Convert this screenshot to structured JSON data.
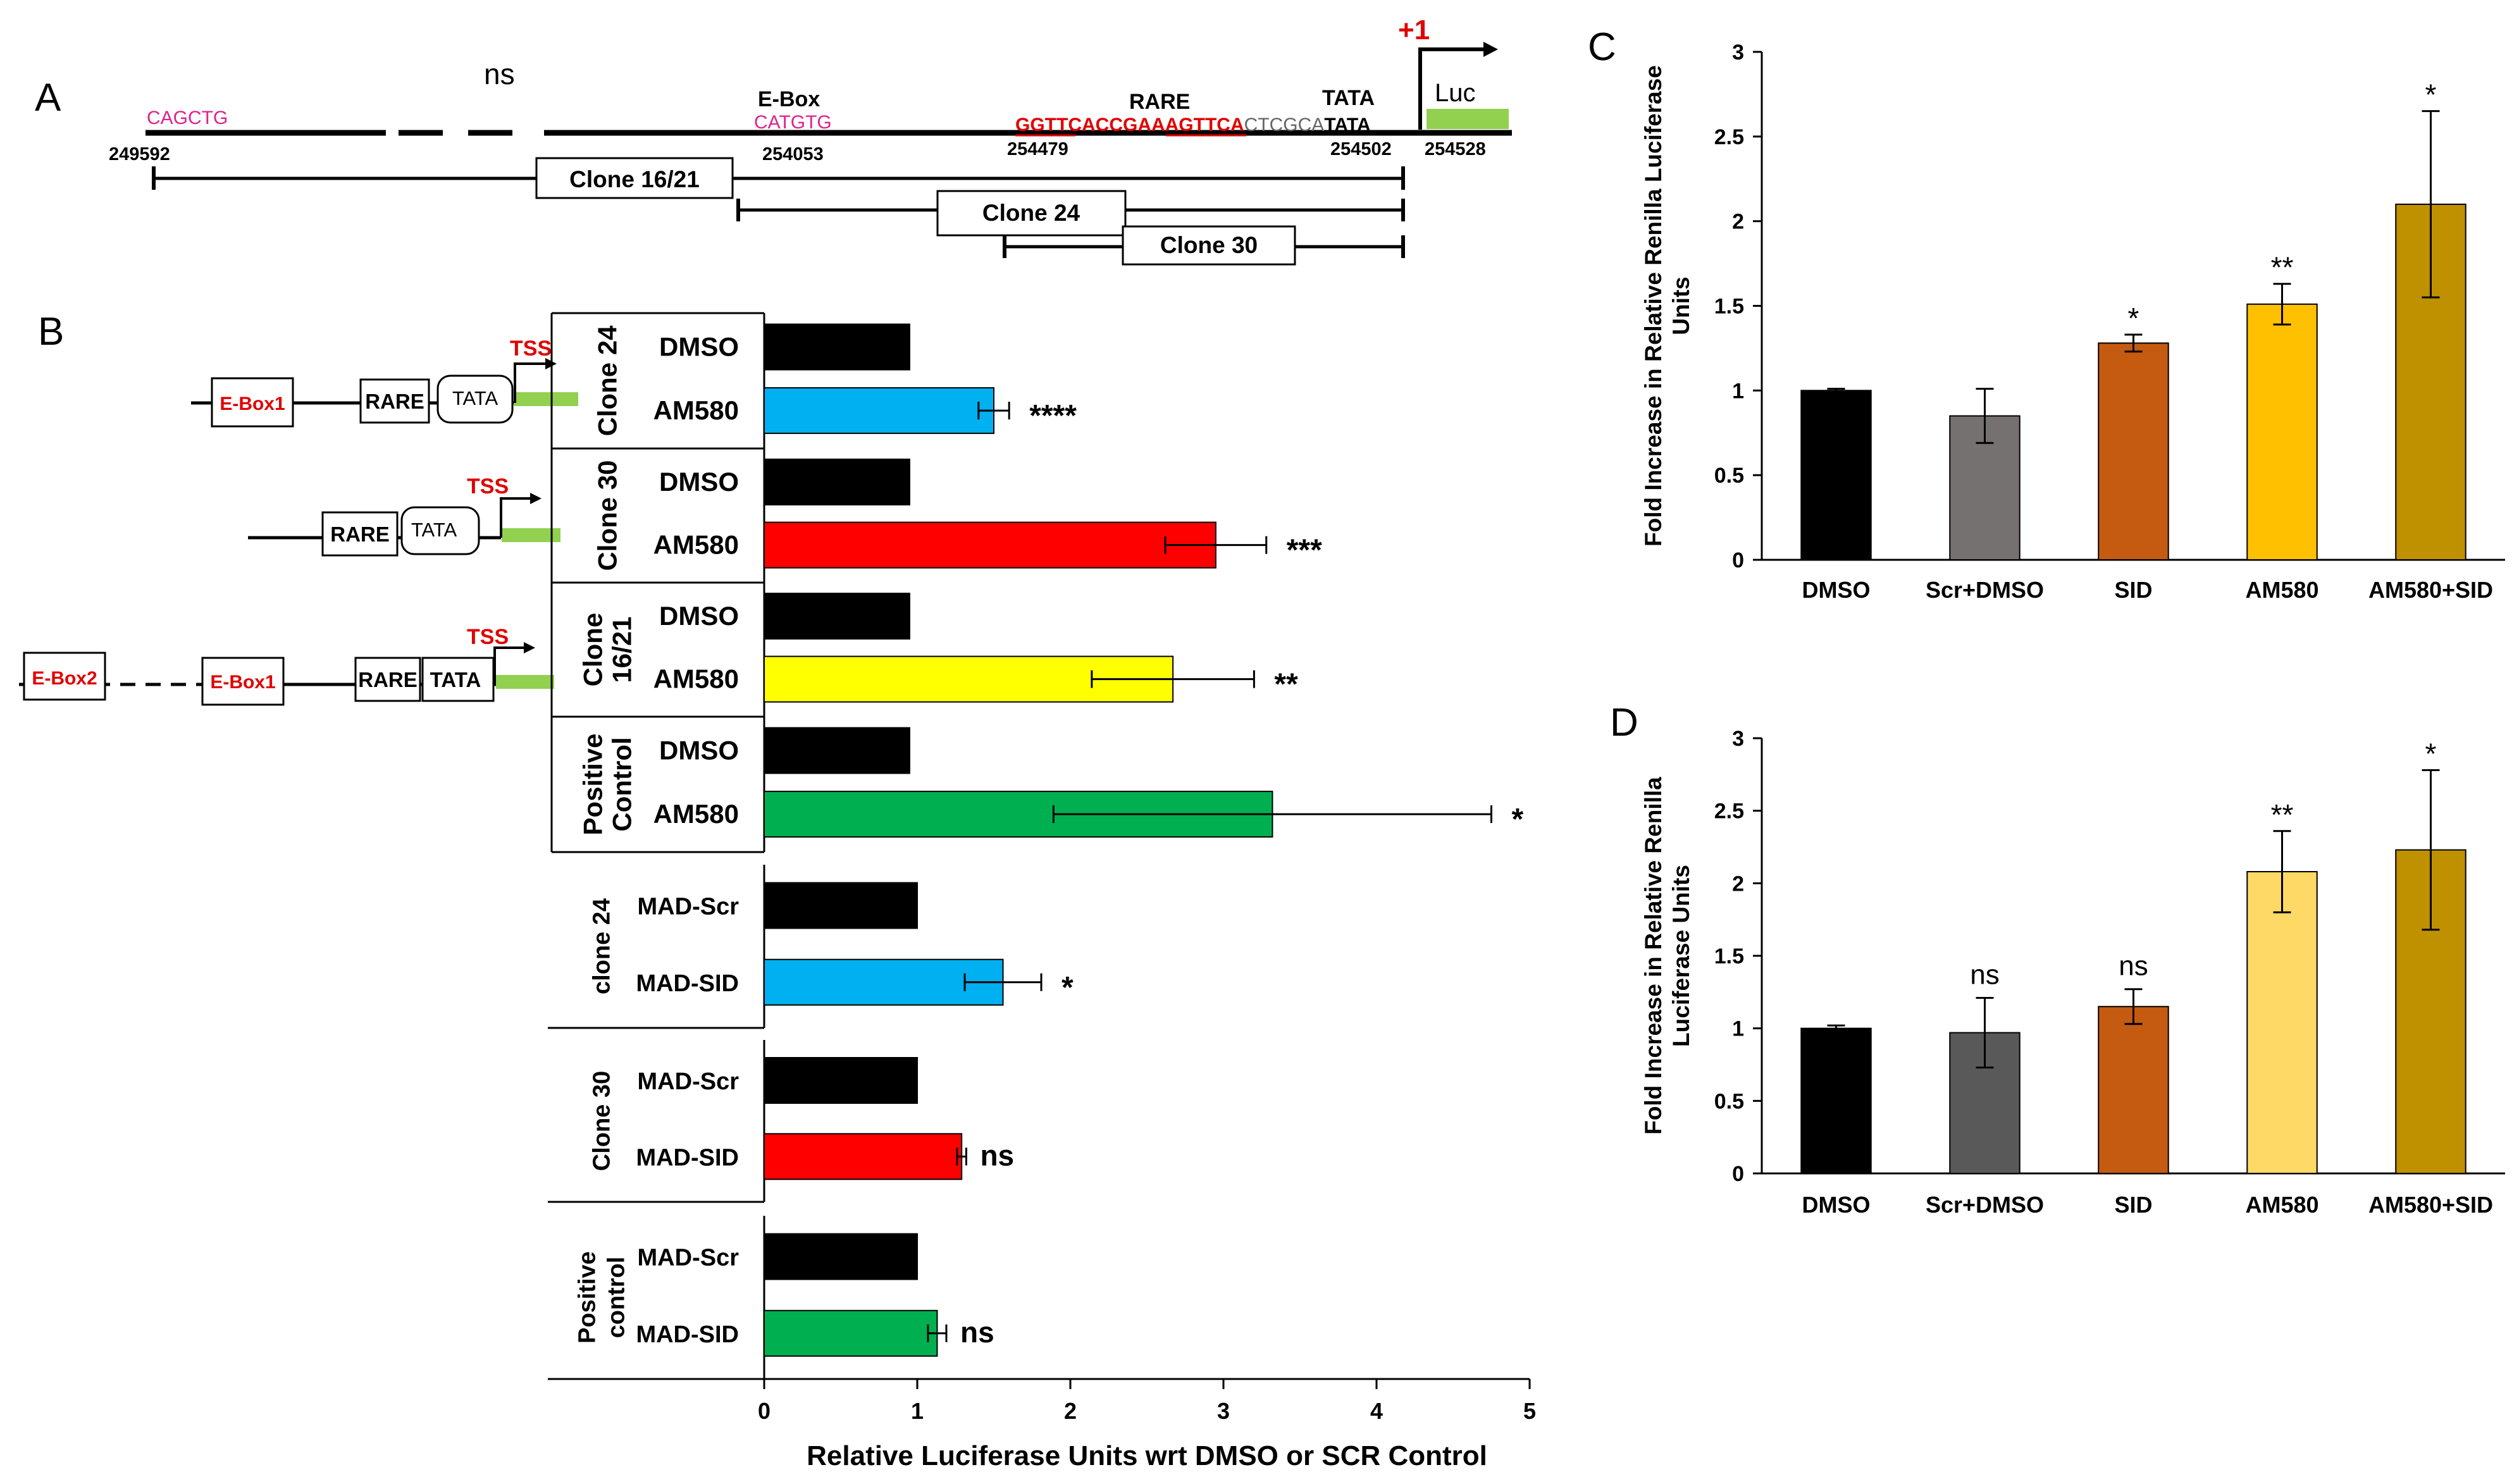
{
  "colors": {
    "black": "#000000",
    "blue": "#00B0F0",
    "red": "#FF0000",
    "yellow": "#FFFF00",
    "green": "#00B050",
    "gray": "#767171",
    "darkgray": "#595959",
    "orange": "#C55A11",
    "gold": "#FFC000",
    "lightgold": "#FFD966",
    "olive": "#BF9000",
    "magenta": "#E0218A",
    "lightgreen": "#92D050",
    "dnared": "#E00000"
  },
  "panelA": {
    "panel_letter": "A",
    "ns_label": "ns",
    "cagctg": "CAGCTG",
    "ebox_label": "E-Box",
    "catgtg": "CATGTG",
    "rare_label": "RARE",
    "rare_seq_red1": "GGTTCACCGAAAGTTCA",
    "rare_seq_gray": "CTCGCA",
    "rare_seq_tata": "TATA",
    "tata_label": "TATA",
    "plus1": "+1",
    "luc": "Luc",
    "positions": [
      "249592",
      "254053",
      "254479",
      "254502",
      "254528"
    ],
    "clones": [
      "Clone 16/21",
      "Clone 24",
      "Clone 30"
    ]
  },
  "panelB": {
    "panel_letter": "B",
    "diagram": {
      "tss": "TSS",
      "ebox1": "E-Box1",
      "ebox2": "E-Box2",
      "rare": "RARE",
      "tata": "TATA"
    },
    "chart_data": {
      "type": "bar",
      "orientation": "horizontal",
      "xlabel": "Relative Luciferase Units wrt DMSO or SCR Control",
      "xlim": [
        0,
        5
      ],
      "xticks": [
        "0",
        "1",
        "2",
        "3",
        "4",
        "5"
      ],
      "groups": [
        {
          "label": [
            "Clone 24"
          ],
          "bars": [
            {
              "name": "DMSO",
              "value": 0.95,
              "error": 0,
              "color": "black",
              "sig": ""
            },
            {
              "name": "AM580",
              "value": 1.5,
              "error": 0.1,
              "color": "blue",
              "sig": "****"
            }
          ]
        },
        {
          "label": [
            "Clone 30"
          ],
          "bars": [
            {
              "name": "DMSO",
              "value": 0.95,
              "error": 0,
              "color": "black",
              "sig": ""
            },
            {
              "name": "AM580",
              "value": 2.95,
              "error": 0.33,
              "color": "red",
              "sig": "***"
            }
          ]
        },
        {
          "label": [
            "Clone",
            "16/21"
          ],
          "bars": [
            {
              "name": "DMSO",
              "value": 0.95,
              "error": 0,
              "color": "black",
              "sig": ""
            },
            {
              "name": "AM580",
              "value": 2.67,
              "error": 0.53,
              "color": "yellow",
              "sig": "**"
            }
          ]
        },
        {
          "label": [
            "Positive",
            "Control"
          ],
          "bars": [
            {
              "name": "DMSO",
              "value": 0.95,
              "error": 0,
              "color": "black",
              "sig": ""
            },
            {
              "name": "AM580",
              "value": 3.32,
              "error": 1.43,
              "color": "green",
              "sig": "*"
            }
          ]
        },
        {
          "label": [
            "clone 24"
          ],
          "bars": [
            {
              "name": "MAD-Scr",
              "value": 1.0,
              "error": 0,
              "color": "black",
              "sig": ""
            },
            {
              "name": "MAD-SID",
              "value": 1.56,
              "error": 0.25,
              "color": "blue",
              "sig": "*"
            }
          ]
        },
        {
          "label": [
            "Clone 30"
          ],
          "bars": [
            {
              "name": "MAD-Scr",
              "value": 1.0,
              "error": 0,
              "color": "black",
              "sig": ""
            },
            {
              "name": "MAD-SID",
              "value": 1.29,
              "error": 0.03,
              "color": "red",
              "sig": "ns"
            }
          ]
        },
        {
          "label": [
            "Positive",
            "control"
          ],
          "bars": [
            {
              "name": "MAD-Scr",
              "value": 1.0,
              "error": 0,
              "color": "black",
              "sig": ""
            },
            {
              "name": "MAD-SID",
              "value": 1.13,
              "error": 0.06,
              "color": "green",
              "sig": "ns"
            }
          ]
        }
      ]
    }
  },
  "panelC": {
    "panel_letter": "C",
    "chart_data": {
      "type": "bar",
      "ylabel": [
        "Fold Increase in Relative Renilla Luciferase",
        "Units"
      ],
      "ylim": [
        0,
        3
      ],
      "yticks": [
        "0",
        "0.5",
        "1",
        "1.5",
        "2",
        "2.5",
        "3"
      ],
      "categories": [
        "DMSO",
        "Scr+DMSO",
        "SID",
        "AM580",
        "AM580+SID"
      ],
      "values": [
        1.0,
        0.85,
        1.28,
        1.51,
        2.1
      ],
      "errors": [
        0.01,
        0.16,
        0.05,
        0.12,
        0.55
      ],
      "colors": [
        "black",
        "gray",
        "orange",
        "gold",
        "olive"
      ],
      "sig": [
        "",
        "",
        "*",
        "**",
        "*"
      ]
    }
  },
  "panelD": {
    "panel_letter": "D",
    "chart_data": {
      "type": "bar",
      "ylabel": [
        "Fold Increase in Relative Renilla",
        "Luciferase Units"
      ],
      "ylim": [
        0,
        3
      ],
      "yticks": [
        "0",
        "0.5",
        "1",
        "1.5",
        "2",
        "2.5",
        "3"
      ],
      "categories": [
        "DMSO",
        "Scr+DMSO",
        "SID",
        "AM580",
        "AM580+SID"
      ],
      "values": [
        1.0,
        0.97,
        1.15,
        2.08,
        2.23
      ],
      "errors": [
        0.02,
        0.24,
        0.12,
        0.28,
        0.55
      ],
      "colors": [
        "black",
        "darkgray",
        "orange",
        "lightgold",
        "olive"
      ],
      "sig": [
        "",
        "ns",
        "ns",
        "**",
        "*"
      ]
    }
  }
}
